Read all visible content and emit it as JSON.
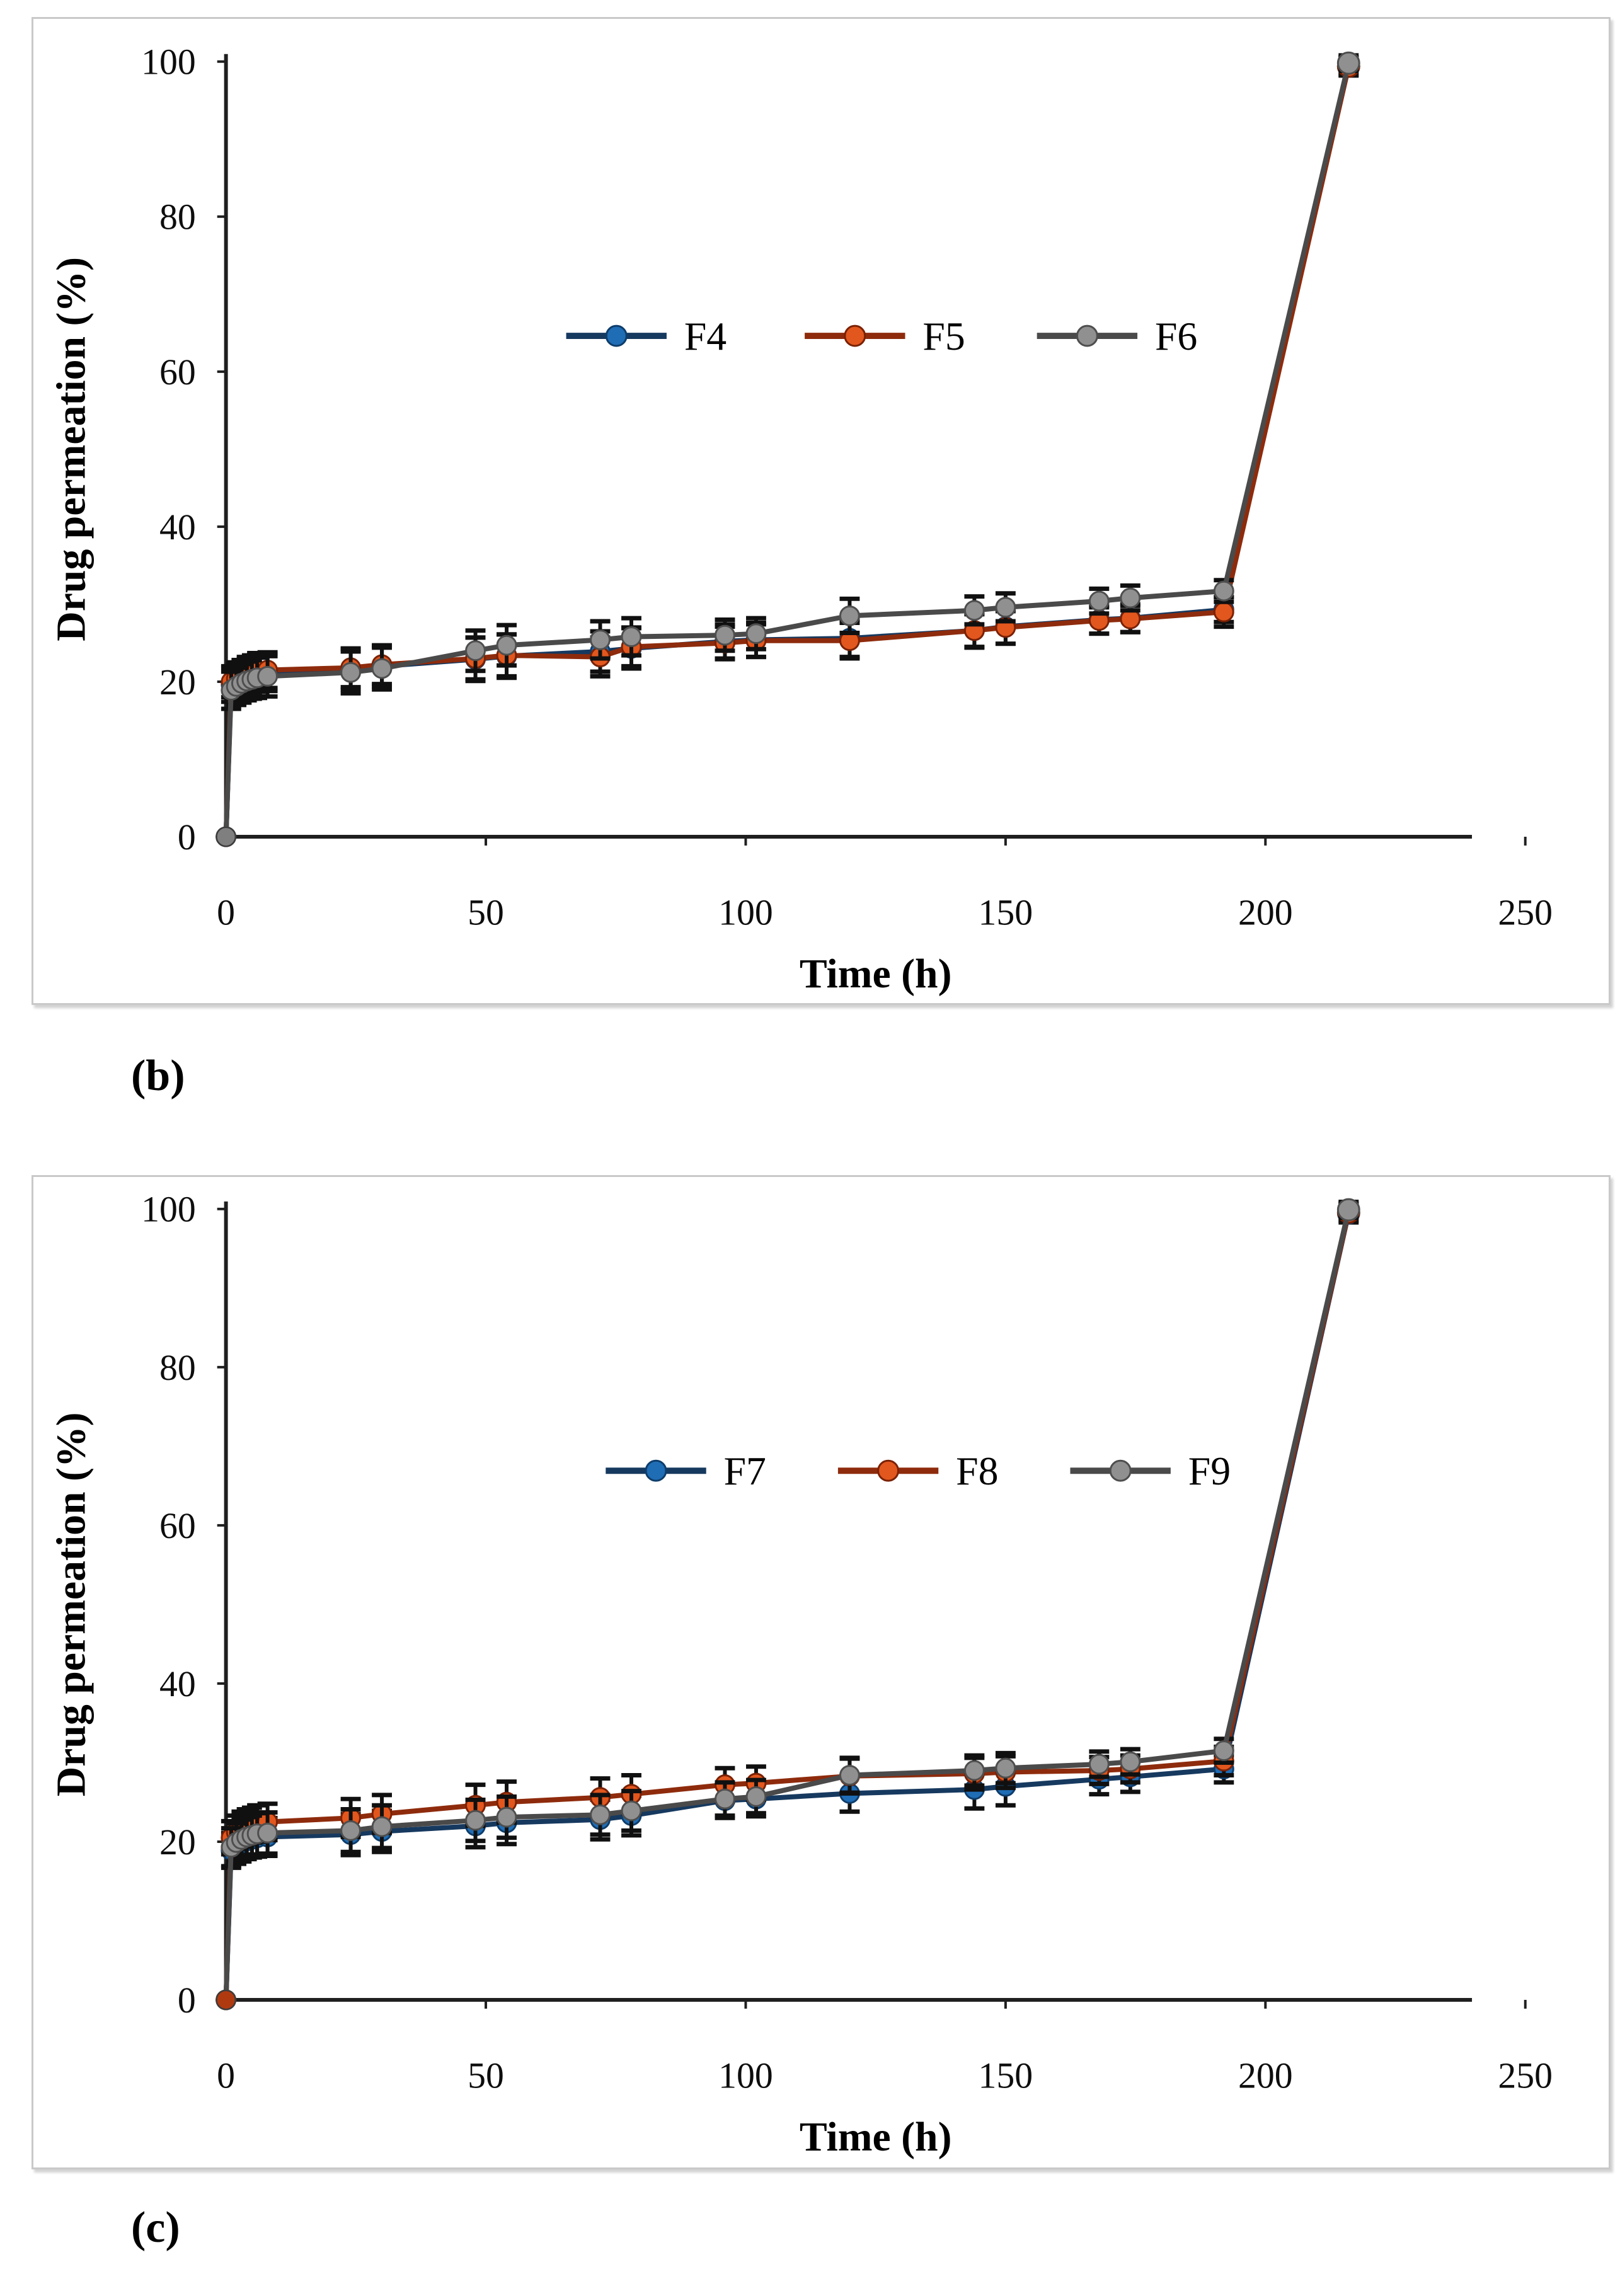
{
  "page": {
    "background": "#ffffff"
  },
  "panels": [
    {
      "panel_label": "(b)"
    },
    {
      "panel_label": "(c)"
    }
  ],
  "chart_data": [
    {
      "type": "line",
      "panel": "b",
      "xlabel": "Time (h)",
      "ylabel": "Drug permeation (%)",
      "xlim": [
        0,
        250
      ],
      "ylim": [
        0,
        100
      ],
      "x_ticks": [
        0,
        50,
        100,
        150,
        200,
        250
      ],
      "y_ticks": [
        0,
        20,
        40,
        60,
        80,
        100
      ],
      "grid": false,
      "legend_position": "inside-upper-center",
      "axis_color": "#1f1f1f",
      "error_bar_color": "#101010",
      "origin_dot_color": "#7f7f7f",
      "x": [
        0,
        1,
        2,
        3,
        4,
        5,
        6,
        8,
        24,
        30,
        48,
        54,
        72,
        78,
        96,
        102,
        120,
        144,
        150,
        168,
        174,
        192,
        216
      ],
      "series": [
        {
          "name": "F4",
          "marker_color": "#1F6DB5",
          "marker_edge": "#0E3D6B",
          "line_color": "#16395F",
          "values": [
            0,
            19.6,
            20.1,
            20.4,
            20.7,
            20.9,
            21.1,
            21.2,
            21.6,
            22.0,
            22.9,
            23.3,
            23.9,
            24.3,
            25.2,
            25.4,
            25.6,
            26.6,
            27.1,
            28.0,
            28.2,
            29.3,
            99.4
          ],
          "errors": [
            0,
            2.2,
            2.2,
            2.3,
            2.3,
            2.4,
            2.4,
            2.4,
            2.6,
            2.6,
            2.8,
            2.8,
            2.6,
            2.6,
            2.2,
            2.2,
            2.4,
            2.2,
            2.2,
            1.8,
            1.8,
            1.6,
            1.2
          ]
        },
        {
          "name": "F5",
          "marker_color": "#E2571E",
          "marker_edge": "#7A2104",
          "line_color": "#8E2B0C",
          "values": [
            0,
            20.0,
            20.4,
            20.7,
            21.0,
            21.2,
            21.4,
            21.5,
            21.8,
            22.2,
            23.0,
            23.4,
            23.2,
            24.5,
            25.0,
            25.3,
            25.3,
            26.6,
            27.0,
            27.9,
            28.1,
            29.0,
            99.4
          ],
          "errors": [
            0,
            2.0,
            2.1,
            2.1,
            2.2,
            2.2,
            2.3,
            2.3,
            2.5,
            2.5,
            2.7,
            2.7,
            2.5,
            2.5,
            2.1,
            2.1,
            2.3,
            2.1,
            2.1,
            1.7,
            1.7,
            1.9,
            1.1
          ]
        },
        {
          "name": "F6",
          "marker_color": "#909090",
          "marker_edge": "#4E4E4E",
          "line_color": "#4A4A4A",
          "values": [
            0,
            18.9,
            19.4,
            19.8,
            20.1,
            20.3,
            20.5,
            20.7,
            21.2,
            21.7,
            24.0,
            24.7,
            25.4,
            25.8,
            26.0,
            26.2,
            28.5,
            29.2,
            29.6,
            30.4,
            30.8,
            31.7,
            99.8
          ],
          "errors": [
            0,
            2.4,
            2.4,
            2.5,
            2.5,
            2.5,
            2.6,
            2.6,
            2.7,
            2.7,
            2.6,
            2.6,
            2.4,
            2.4,
            2.0,
            2.0,
            2.2,
            1.8,
            1.8,
            1.6,
            1.6,
            1.4,
            1.0
          ]
        }
      ]
    },
    {
      "type": "line",
      "panel": "c",
      "xlabel": "Time (h)",
      "ylabel": "Drug permeation (%)",
      "xlim": [
        0,
        250
      ],
      "ylim": [
        0,
        100
      ],
      "x_ticks": [
        0,
        50,
        100,
        150,
        200,
        250
      ],
      "y_ticks": [
        0,
        20,
        40,
        60,
        80,
        100
      ],
      "grid": false,
      "legend_position": "inside-upper-center",
      "axis_color": "#1f1f1f",
      "error_bar_color": "#101010",
      "origin_dot_color": "#B03A10",
      "x": [
        0,
        1,
        2,
        3,
        4,
        5,
        6,
        8,
        24,
        30,
        48,
        54,
        72,
        78,
        96,
        102,
        120,
        144,
        150,
        168,
        174,
        192,
        216
      ],
      "series": [
        {
          "name": "F7",
          "marker_color": "#1F6DB5",
          "marker_edge": "#0E3D6B",
          "line_color": "#16395F",
          "values": [
            0,
            18.9,
            19.4,
            19.8,
            20.1,
            20.3,
            20.5,
            20.6,
            20.9,
            21.3,
            22.0,
            22.4,
            22.8,
            23.3,
            25.2,
            25.4,
            26.1,
            26.6,
            27.0,
            27.9,
            28.2,
            29.2,
            99.5
          ],
          "errors": [
            0,
            2.2,
            2.2,
            2.3,
            2.3,
            2.3,
            2.4,
            2.4,
            2.6,
            2.6,
            2.7,
            2.7,
            2.5,
            2.5,
            2.2,
            2.2,
            2.3,
            2.4,
            2.4,
            1.9,
            1.9,
            1.7,
            1.2
          ]
        },
        {
          "name": "F8",
          "marker_color": "#E2571E",
          "marker_edge": "#7A2104",
          "line_color": "#8E2B0C",
          "values": [
            0,
            20.5,
            21.2,
            21.6,
            21.9,
            22.1,
            22.3,
            22.5,
            23.0,
            23.5,
            24.6,
            25.0,
            25.6,
            26.0,
            27.2,
            27.4,
            28.3,
            28.6,
            28.8,
            29.0,
            29.2,
            30.2,
            99.6
          ],
          "errors": [
            0,
            2.1,
            2.1,
            2.2,
            2.2,
            2.2,
            2.3,
            2.3,
            2.4,
            2.4,
            2.6,
            2.6,
            2.4,
            2.4,
            2.1,
            2.1,
            2.2,
            2.0,
            2.0,
            1.7,
            1.7,
            1.8,
            1.1
          ]
        },
        {
          "name": "F9",
          "marker_color": "#909090",
          "marker_edge": "#4E4E4E",
          "line_color": "#4A4A4A",
          "values": [
            0,
            19.3,
            19.9,
            20.3,
            20.6,
            20.8,
            21.0,
            21.1,
            21.4,
            21.9,
            22.7,
            23.1,
            23.4,
            23.9,
            25.4,
            25.7,
            28.4,
            29.0,
            29.3,
            29.8,
            30.1,
            31.5,
            99.9
          ],
          "errors": [
            0,
            2.4,
            2.4,
            2.5,
            2.5,
            2.5,
            2.6,
            2.6,
            2.7,
            2.7,
            2.6,
            2.6,
            2.5,
            2.5,
            2.1,
            2.1,
            2.2,
            1.9,
            1.9,
            1.6,
            1.6,
            1.5,
            1.0
          ]
        }
      ]
    }
  ]
}
